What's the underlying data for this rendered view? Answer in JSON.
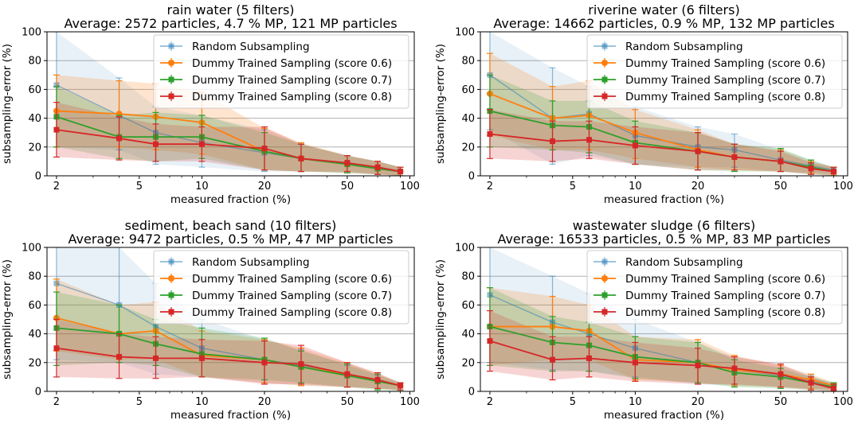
{
  "chart_data": [
    {
      "type": "line",
      "title": "rain water (5 filters)",
      "subtitle": "Average: 2572 particles, 4.7 % MP, 121 MP particles",
      "xlabel": "measured fraction (%)",
      "ylabel": "subsampling-error (%)",
      "xscale": "log",
      "xlim": [
        1.8,
        105
      ],
      "ylim": [
        0,
        100
      ],
      "xticks": [
        2,
        5,
        10,
        20,
        50,
        100
      ],
      "yticks": [
        0,
        20,
        40,
        60,
        80,
        100
      ],
      "legend": "top-right",
      "series": [
        {
          "name": "Random Subsampling",
          "color": "#1f77b4",
          "marker": "square",
          "x": [
            2,
            4,
            6,
            10,
            20,
            30,
            50,
            70,
            90
          ],
          "y": [
            63,
            42,
            30,
            23,
            16,
            12,
            9,
            5,
            3
          ],
          "lower": [
            20,
            18,
            8,
            6,
            3,
            3,
            2,
            1,
            0
          ],
          "upper": [
            100,
            68,
            48,
            42,
            32,
            22,
            14,
            10,
            6
          ]
        },
        {
          "name": "Dummy Trained Sampling (score 0.6)",
          "color": "#ff7f0e",
          "marker": "circle",
          "x": [
            2,
            4,
            6,
            10,
            20,
            30,
            50,
            70,
            90
          ],
          "y": [
            45,
            43,
            41,
            37,
            17,
            12,
            8,
            5,
            3
          ],
          "lower": [
            20,
            20,
            18,
            15,
            4,
            3,
            2,
            1,
            0
          ],
          "upper": [
            70,
            66,
            64,
            58,
            33,
            23,
            14,
            10,
            6
          ]
        },
        {
          "name": "Dummy Trained Sampling (score 0.7)",
          "color": "#2ca02c",
          "marker": "square",
          "x": [
            2,
            4,
            6,
            10,
            20,
            30,
            50,
            70,
            90
          ],
          "y": [
            41,
            27,
            27,
            27,
            17,
            12,
            8,
            5,
            3
          ],
          "lower": [
            20,
            12,
            10,
            12,
            4,
            3,
            2,
            1,
            0
          ],
          "upper": [
            62,
            42,
            44,
            42,
            30,
            22,
            14,
            10,
            6
          ]
        },
        {
          "name": "Dummy Trained Sampling (score 0.8)",
          "color": "#d62728",
          "marker": "square",
          "x": [
            2,
            4,
            6,
            10,
            20,
            30,
            50,
            70,
            90
          ],
          "y": [
            32,
            26,
            22,
            22,
            19,
            12,
            9,
            6,
            3
          ],
          "lower": [
            13,
            11,
            10,
            10,
            4,
            3,
            3,
            1,
            0
          ],
          "upper": [
            51,
            41,
            36,
            34,
            34,
            22,
            14,
            10,
            6
          ]
        }
      ]
    },
    {
      "type": "line",
      "title": "riverine water (6 filters)",
      "subtitle": "Average: 14662 particles, 0.9 % MP, 132 MP particles",
      "xlabel": "measured fraction (%)",
      "ylabel": "subsampling-error (%)",
      "xscale": "log",
      "xlim": [
        1.8,
        105
      ],
      "ylim": [
        0,
        100
      ],
      "xticks": [
        2,
        5,
        10,
        20,
        50,
        100
      ],
      "yticks": [
        0,
        20,
        40,
        60,
        80,
        100
      ],
      "legend": "top-right",
      "series": [
        {
          "name": "Random Subsampling",
          "color": "#1f77b4",
          "marker": "square",
          "x": [
            2,
            4,
            6,
            10,
            20,
            30,
            50,
            70,
            90
          ],
          "y": [
            70,
            40,
            43,
            28,
            20,
            18,
            11,
            7,
            4
          ],
          "lower": [
            32,
            8,
            14,
            8,
            6,
            6,
            3,
            2,
            1
          ],
          "upper": [
            100,
            75,
            62,
            48,
            34,
            29,
            18,
            11,
            6
          ]
        },
        {
          "name": "Dummy Trained Sampling (score 0.6)",
          "color": "#ff7f0e",
          "marker": "circle",
          "x": [
            2,
            4,
            6,
            10,
            20,
            30,
            50,
            70,
            90
          ],
          "y": [
            57,
            40,
            42,
            30,
            18,
            13,
            10,
            6,
            3
          ],
          "lower": [
            28,
            18,
            18,
            12,
            6,
            4,
            3,
            2,
            1
          ],
          "upper": [
            85,
            62,
            66,
            46,
            32,
            22,
            18,
            10,
            6
          ]
        },
        {
          "name": "Dummy Trained Sampling (score 0.7)",
          "color": "#2ca02c",
          "marker": "square",
          "x": [
            2,
            4,
            6,
            10,
            20,
            30,
            50,
            70,
            90
          ],
          "y": [
            45,
            35,
            34,
            23,
            17,
            13,
            10,
            6,
            3
          ],
          "lower": [
            20,
            18,
            16,
            8,
            4,
            3,
            3,
            1,
            0
          ],
          "upper": [
            70,
            52,
            52,
            38,
            30,
            22,
            19,
            11,
            6
          ]
        },
        {
          "name": "Dummy Trained Sampling (score 0.8)",
          "color": "#d62728",
          "marker": "square",
          "x": [
            2,
            4,
            6,
            10,
            20,
            30,
            50,
            70,
            90
          ],
          "y": [
            29,
            24,
            25,
            21,
            17,
            13,
            10,
            5,
            3
          ],
          "lower": [
            12,
            10,
            12,
            8,
            4,
            4,
            3,
            1,
            0
          ],
          "upper": [
            46,
            38,
            38,
            34,
            30,
            22,
            17,
            9,
            6
          ]
        }
      ]
    },
    {
      "type": "line",
      "title": "sediment, beach sand (10 filters)",
      "subtitle": "Average: 9472 particles, 0.5 % MP, 47 MP particles",
      "xlabel": "measured fraction (%)",
      "ylabel": "subsampling-error (%)",
      "xscale": "log",
      "xlim": [
        1.8,
        105
      ],
      "ylim": [
        0,
        100
      ],
      "xticks": [
        2,
        5,
        10,
        20,
        50,
        100
      ],
      "yticks": [
        0,
        20,
        40,
        60,
        80,
        100
      ],
      "legend": "top-right",
      "series": [
        {
          "name": "Random Subsampling",
          "color": "#1f77b4",
          "marker": "square",
          "x": [
            2,
            4,
            6,
            10,
            20,
            30,
            50,
            70,
            90
          ],
          "y": [
            75,
            60,
            45,
            30,
            22,
            18,
            12,
            7,
            4
          ],
          "lower": [
            22,
            20,
            12,
            10,
            6,
            4,
            3,
            2,
            1
          ],
          "upper": [
            100,
            100,
            75,
            50,
            36,
            29,
            18,
            11,
            6
          ]
        },
        {
          "name": "Dummy Trained Sampling (score 0.6)",
          "color": "#ff7f0e",
          "marker": "circle",
          "x": [
            2,
            4,
            6,
            10,
            20,
            30,
            50,
            70,
            90
          ],
          "y": [
            51,
            40,
            42,
            25,
            22,
            17,
            12,
            7,
            4
          ],
          "lower": [
            28,
            22,
            22,
            10,
            6,
            4,
            3,
            2,
            1
          ],
          "upper": [
            78,
            60,
            62,
            42,
            36,
            30,
            20,
            12,
            6
          ]
        },
        {
          "name": "Dummy Trained Sampling (score 0.7)",
          "color": "#2ca02c",
          "marker": "square",
          "x": [
            2,
            4,
            6,
            10,
            20,
            30,
            50,
            70,
            90
          ],
          "y": [
            44,
            40,
            33,
            26,
            22,
            17,
            11,
            7,
            4
          ],
          "lower": [
            18,
            20,
            18,
            10,
            8,
            6,
            3,
            1,
            0
          ],
          "upper": [
            69,
            60,
            50,
            44,
            37,
            28,
            19,
            12,
            6
          ]
        },
        {
          "name": "Dummy Trained Sampling (score 0.8)",
          "color": "#d62728",
          "marker": "square",
          "x": [
            2,
            4,
            6,
            10,
            20,
            30,
            50,
            70,
            90
          ],
          "y": [
            30,
            24,
            23,
            23,
            20,
            19,
            12,
            8,
            4
          ],
          "lower": [
            10,
            9,
            9,
            10,
            5,
            5,
            3,
            2,
            1
          ],
          "upper": [
            50,
            40,
            38,
            36,
            35,
            32,
            20,
            13,
            6
          ]
        }
      ]
    },
    {
      "type": "line",
      "title": "wastewater sludge (6 filters)",
      "subtitle": "Average: 16533 particles, 0.5 % MP, 83 MP particles",
      "xlabel": "measured fraction (%)",
      "ylabel": "subsampling-error (%)",
      "xscale": "log",
      "xlim": [
        1.8,
        105
      ],
      "ylim": [
        0,
        100
      ],
      "xticks": [
        2,
        5,
        10,
        20,
        50,
        100
      ],
      "yticks": [
        0,
        20,
        40,
        60,
        80,
        100
      ],
      "legend": "top-right",
      "series": [
        {
          "name": "Random Subsampling",
          "color": "#1f77b4",
          "marker": "square",
          "x": [
            2,
            4,
            6,
            10,
            20,
            30,
            50,
            70,
            90
          ],
          "y": [
            67,
            48,
            40,
            30,
            20,
            15,
            11,
            7,
            4
          ],
          "lower": [
            20,
            15,
            14,
            10,
            5,
            4,
            3,
            2,
            1
          ],
          "upper": [
            100,
            80,
            68,
            50,
            34,
            24,
            18,
            11,
            6
          ]
        },
        {
          "name": "Dummy Trained Sampling (score 0.6)",
          "color": "#ff7f0e",
          "marker": "circle",
          "x": [
            2,
            4,
            6,
            10,
            20,
            30,
            50,
            70,
            90
          ],
          "y": [
            45,
            45,
            42,
            22,
            20,
            15,
            12,
            8,
            4
          ],
          "lower": [
            18,
            22,
            22,
            8,
            6,
            4,
            3,
            2,
            1
          ],
          "upper": [
            72,
            66,
            60,
            38,
            36,
            25,
            18,
            12,
            6
          ]
        },
        {
          "name": "Dummy Trained Sampling (score 0.7)",
          "color": "#2ca02c",
          "marker": "square",
          "x": [
            2,
            4,
            6,
            10,
            20,
            30,
            50,
            70,
            90
          ],
          "y": [
            45,
            34,
            32,
            24,
            20,
            13,
            10,
            6,
            3
          ],
          "lower": [
            18,
            14,
            14,
            9,
            6,
            3,
            2,
            1,
            0
          ],
          "upper": [
            72,
            52,
            48,
            38,
            34,
            22,
            16,
            10,
            6
          ]
        },
        {
          "name": "Dummy Trained Sampling (score 0.8)",
          "color": "#d62728",
          "marker": "square",
          "x": [
            2,
            4,
            6,
            10,
            20,
            30,
            50,
            70,
            90
          ],
          "y": [
            35,
            22,
            23,
            20,
            18,
            16,
            12,
            6,
            2
          ],
          "lower": [
            14,
            8,
            10,
            7,
            5,
            5,
            3,
            1,
            0
          ],
          "upper": [
            56,
            38,
            38,
            34,
            30,
            24,
            19,
            10,
            5
          ]
        }
      ]
    }
  ]
}
